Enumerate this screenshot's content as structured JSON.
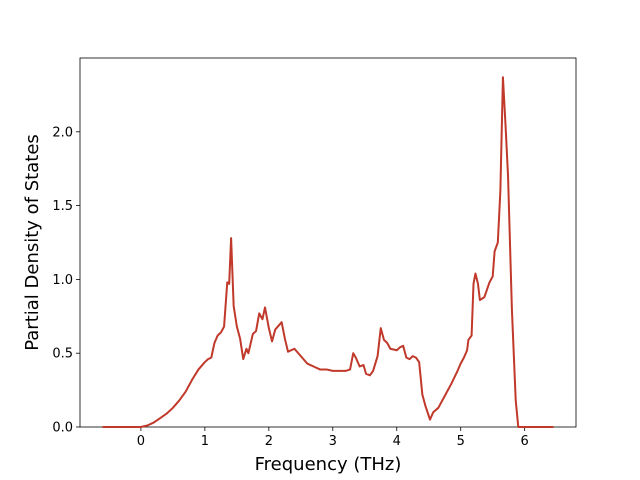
{
  "chart_data": {
    "type": "line",
    "x_label": "Frequency (THz)",
    "y_label": "Partial Density of States",
    "color": "#c0392b",
    "x": [
      -0.6,
      0,
      0.1,
      0.2,
      0.3,
      0.4,
      0.5,
      0.6,
      0.7,
      0.8,
      0.9,
      1.0,
      1.05,
      1.1,
      1.15,
      1.2,
      1.25,
      1.3,
      1.35,
      1.38,
      1.41,
      1.45,
      1.5,
      1.55,
      1.6,
      1.65,
      1.68,
      1.75,
      1.8,
      1.85,
      1.9,
      1.94,
      2.0,
      2.05,
      2.1,
      2.2,
      2.25,
      2.3,
      2.4,
      2.5,
      2.6,
      2.7,
      2.8,
      2.9,
      3.0,
      3.2,
      3.27,
      3.32,
      3.36,
      3.42,
      3.48,
      3.52,
      3.58,
      3.63,
      3.7,
      3.75,
      3.8,
      3.85,
      3.9,
      4.0,
      4.05,
      4.1,
      4.15,
      4.2,
      4.25,
      4.3,
      4.35,
      4.4,
      4.45,
      4.52,
      4.57,
      4.65,
      4.75,
      4.85,
      4.95,
      5.0,
      5.05,
      5.1,
      5.12,
      5.17,
      5.2,
      5.23,
      5.27,
      5.3,
      5.37,
      5.45,
      5.5,
      5.53,
      5.58,
      5.62,
      5.66,
      5.7,
      5.74,
      5.8,
      5.86,
      5.9,
      6.45
    ],
    "values": [
      0,
      0,
      0.01,
      0.03,
      0.06,
      0.09,
      0.13,
      0.18,
      0.24,
      0.32,
      0.39,
      0.44,
      0.46,
      0.47,
      0.57,
      0.62,
      0.64,
      0.68,
      0.98,
      0.97,
      1.28,
      0.82,
      0.68,
      0.6,
      0.46,
      0.53,
      0.5,
      0.63,
      0.65,
      0.77,
      0.73,
      0.81,
      0.67,
      0.58,
      0.66,
      0.71,
      0.6,
      0.51,
      0.53,
      0.48,
      0.43,
      0.41,
      0.39,
      0.39,
      0.38,
      0.38,
      0.39,
      0.5,
      0.47,
      0.41,
      0.42,
      0.36,
      0.35,
      0.38,
      0.48,
      0.67,
      0.59,
      0.57,
      0.53,
      0.52,
      0.54,
      0.55,
      0.47,
      0.46,
      0.48,
      0.47,
      0.44,
      0.22,
      0.14,
      0.05,
      0.1,
      0.13,
      0.21,
      0.29,
      0.38,
      0.43,
      0.47,
      0.52,
      0.59,
      0.62,
      0.97,
      1.04,
      0.97,
      0.86,
      0.88,
      0.98,
      1.02,
      1.19,
      1.25,
      1.6,
      2.37,
      2.05,
      1.7,
      0.8,
      0.18,
      0,
      0
    ],
    "xlim": [
      -0.9525,
      6.8025
    ],
    "ylim": [
      0,
      2.5
    ],
    "xticks": [
      0,
      1,
      2,
      3,
      4,
      5,
      6
    ],
    "yticks": [
      {
        "value": 0,
        "label": "0.0"
      },
      0.5,
      {
        "value": 1,
        "label": "1.0"
      },
      1.5,
      {
        "value": 2,
        "label": "2.0"
      }
    ]
  }
}
